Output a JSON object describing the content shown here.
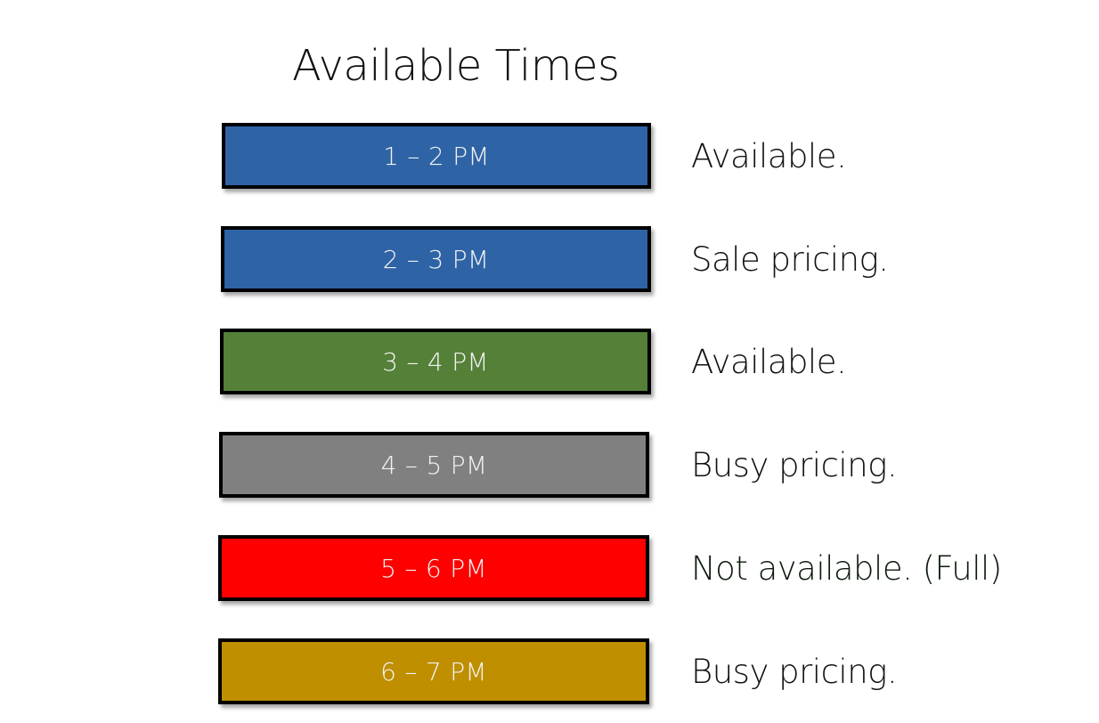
{
  "page": {
    "title": "Available Times"
  },
  "slots": [
    {
      "time_label": "1 – 2 PM",
      "status": "Available.",
      "color": "#2e63a6"
    },
    {
      "time_label": "2 – 3 PM",
      "status": "Sale pricing.",
      "color": "#2e63a6"
    },
    {
      "time_label": "3 – 4 PM",
      "status": "Available.",
      "color": "#548038"
    },
    {
      "time_label": "4 – 5 PM",
      "status": "Busy pricing.",
      "color": "#808080"
    },
    {
      "time_label": "5 – 6 PM",
      "status": "Not available. (Full)",
      "color": "#ff0000"
    },
    {
      "time_label": "6 – 7 PM",
      "status": "Busy pricing.",
      "color": "#bf8f00"
    }
  ]
}
